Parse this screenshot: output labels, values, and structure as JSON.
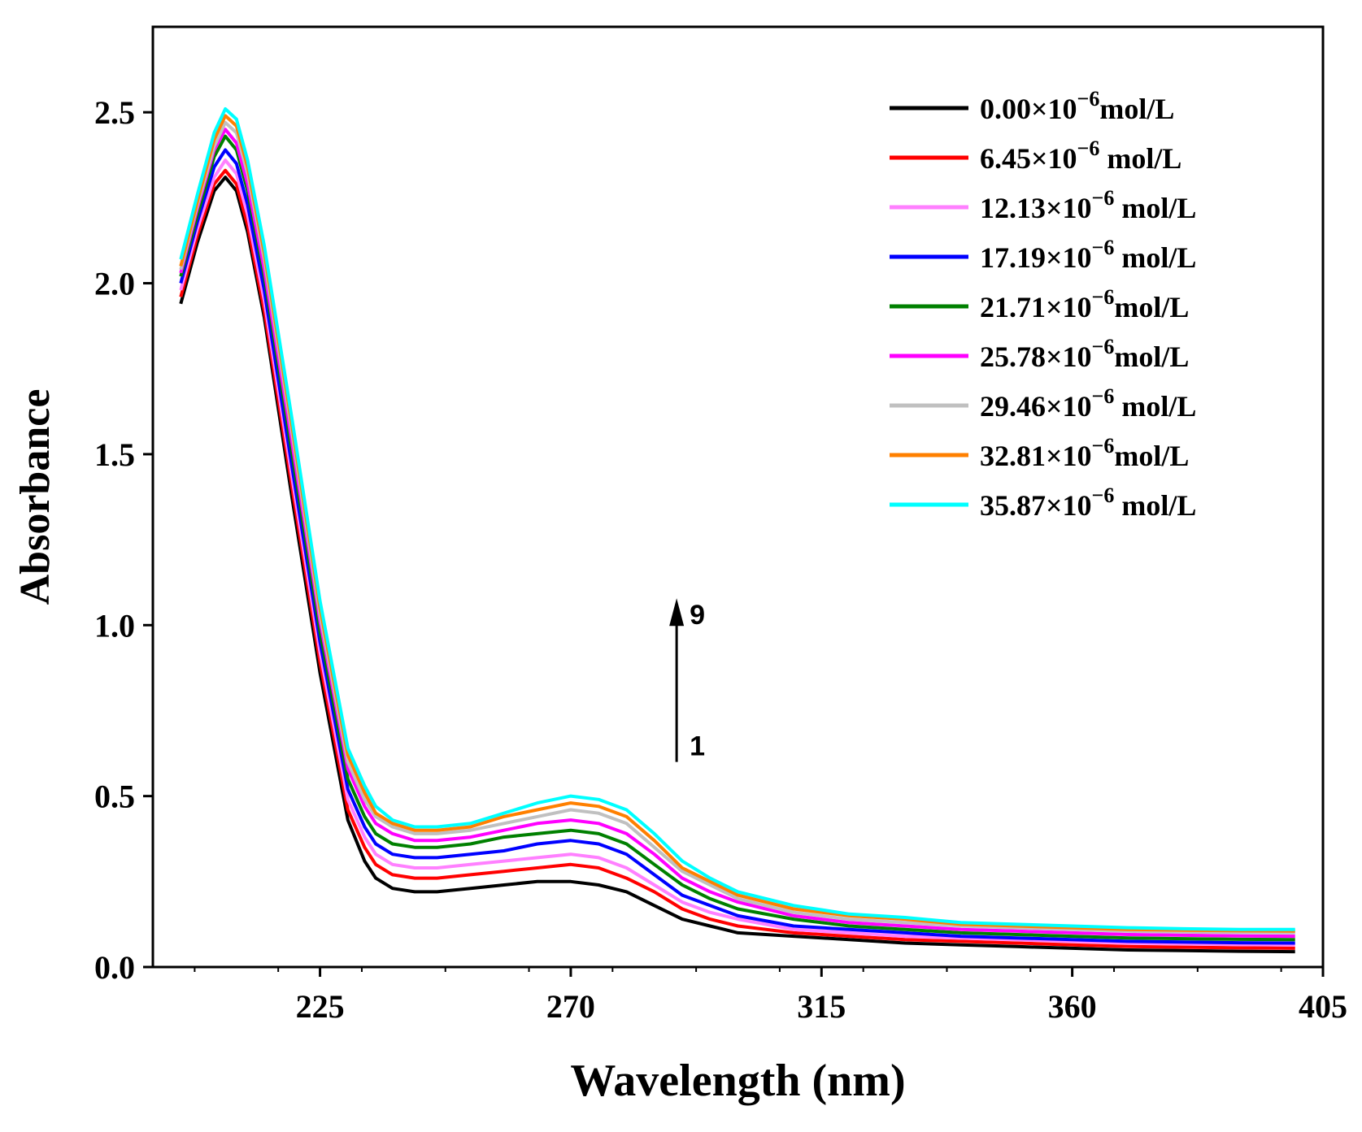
{
  "chart_data": {
    "type": "line",
    "title": "",
    "xlabel": "Wavelength (nm)",
    "ylabel": "Absorbance",
    "xlim": [
      195,
      405
    ],
    "ylim": [
      0.0,
      2.75
    ],
    "xticks": [
      225,
      270,
      315,
      360,
      405
    ],
    "yticks": [
      0.0,
      0.5,
      1.0,
      1.5,
      2.0,
      2.5
    ],
    "xtick_labels": [
      "225",
      "270",
      "315",
      "360",
      "405"
    ],
    "ytick_labels": [
      "0.0",
      "0.5",
      "1.0",
      "1.5",
      "2.0",
      "2.5"
    ],
    "grid": false,
    "legend_position": "top-right",
    "x": [
      200,
      203,
      206,
      208,
      210,
      212,
      215,
      220,
      225,
      230,
      233,
      235,
      238,
      242,
      246,
      252,
      258,
      264,
      270,
      275,
      280,
      285,
      290,
      295,
      300,
      310,
      320,
      330,
      340,
      350,
      360,
      370,
      380,
      390,
      400
    ],
    "series": [
      {
        "name": "0.00×10⁻⁶mol/L",
        "legend_base": "0.00×10",
        "legend_sup": "−6",
        "legend_unit": "mol/L",
        "color": "#000000",
        "values": [
          1.94,
          2.12,
          2.27,
          2.31,
          2.27,
          2.15,
          1.9,
          1.37,
          0.86,
          0.43,
          0.31,
          0.26,
          0.23,
          0.22,
          0.22,
          0.23,
          0.24,
          0.25,
          0.25,
          0.24,
          0.22,
          0.18,
          0.14,
          0.12,
          0.1,
          0.09,
          0.08,
          0.07,
          0.065,
          0.06,
          0.055,
          0.05,
          0.048,
          0.046,
          0.045
        ]
      },
      {
        "name": "6.45×10⁻⁶ mol/L",
        "legend_base": "6.45×10",
        "legend_sup": "−6",
        "legend_unit": " mol/L",
        "color": "#ff0000",
        "values": [
          1.96,
          2.14,
          2.29,
          2.33,
          2.29,
          2.17,
          1.92,
          1.4,
          0.89,
          0.46,
          0.35,
          0.3,
          0.27,
          0.26,
          0.26,
          0.27,
          0.28,
          0.29,
          0.3,
          0.29,
          0.26,
          0.22,
          0.17,
          0.14,
          0.12,
          0.1,
          0.09,
          0.08,
          0.075,
          0.07,
          0.065,
          0.06,
          0.058,
          0.056,
          0.055
        ]
      },
      {
        "name": "12.13×10⁻⁶ mol/L",
        "legend_base": "12.13×10",
        "legend_sup": "−6",
        "legend_unit": " mol/L",
        "color": "#ff80ff",
        "values": [
          1.98,
          2.16,
          2.31,
          2.36,
          2.32,
          2.2,
          1.95,
          1.43,
          0.92,
          0.49,
          0.38,
          0.33,
          0.3,
          0.29,
          0.29,
          0.3,
          0.31,
          0.32,
          0.33,
          0.32,
          0.29,
          0.24,
          0.19,
          0.16,
          0.14,
          0.11,
          0.1,
          0.09,
          0.085,
          0.08,
          0.075,
          0.07,
          0.068,
          0.066,
          0.065
        ]
      },
      {
        "name": "17.19×10⁻⁶ mol/L",
        "legend_base": "17.19×10",
        "legend_sup": "−6",
        "legend_unit": " mol/L",
        "color": "#0000ff",
        "values": [
          2.0,
          2.18,
          2.34,
          2.39,
          2.35,
          2.23,
          1.98,
          1.46,
          0.95,
          0.52,
          0.41,
          0.36,
          0.33,
          0.32,
          0.32,
          0.33,
          0.34,
          0.36,
          0.37,
          0.36,
          0.33,
          0.27,
          0.21,
          0.18,
          0.15,
          0.12,
          0.11,
          0.1,
          0.09,
          0.085,
          0.08,
          0.075,
          0.073,
          0.071,
          0.07
        ]
      },
      {
        "name": "21.71×10⁻⁶mol/L",
        "legend_base": "21.71×10",
        "legend_sup": "−6",
        "legend_unit": "mol/L",
        "color": "#008000",
        "values": [
          2.02,
          2.2,
          2.37,
          2.43,
          2.39,
          2.27,
          2.02,
          1.5,
          0.98,
          0.55,
          0.44,
          0.39,
          0.36,
          0.35,
          0.35,
          0.36,
          0.38,
          0.39,
          0.4,
          0.39,
          0.36,
          0.3,
          0.24,
          0.2,
          0.17,
          0.14,
          0.12,
          0.11,
          0.1,
          0.095,
          0.09,
          0.085,
          0.083,
          0.081,
          0.08
        ]
      },
      {
        "name": "25.78×10⁻⁶mol/L",
        "legend_base": "25.78×10",
        "legend_sup": "−6",
        "legend_unit": "mol/L",
        "color": "#ff00ff",
        "values": [
          2.03,
          2.22,
          2.39,
          2.45,
          2.41,
          2.29,
          2.04,
          1.53,
          1.01,
          0.58,
          0.47,
          0.42,
          0.39,
          0.37,
          0.37,
          0.38,
          0.4,
          0.42,
          0.43,
          0.42,
          0.39,
          0.33,
          0.26,
          0.22,
          0.19,
          0.15,
          0.13,
          0.12,
          0.11,
          0.105,
          0.1,
          0.095,
          0.093,
          0.091,
          0.09
        ]
      },
      {
        "name": "29.46×10⁻⁶ mol/L",
        "legend_base": "29.46×10",
        "legend_sup": "−6",
        "legend_unit": " mol/L",
        "color": "#c0c0c0",
        "values": [
          2.04,
          2.23,
          2.4,
          2.47,
          2.44,
          2.32,
          2.07,
          1.56,
          1.03,
          0.6,
          0.49,
          0.44,
          0.41,
          0.39,
          0.39,
          0.4,
          0.42,
          0.44,
          0.46,
          0.45,
          0.42,
          0.35,
          0.28,
          0.24,
          0.2,
          0.16,
          0.14,
          0.13,
          0.12,
          0.115,
          0.11,
          0.105,
          0.103,
          0.101,
          0.1
        ]
      },
      {
        "name": "32.81×10⁻⁶mol/L",
        "legend_base": "32.81×10",
        "legend_sup": "−6",
        "legend_unit": "mol/L",
        "color": "#ff8000",
        "values": [
          2.05,
          2.24,
          2.42,
          2.49,
          2.46,
          2.34,
          2.09,
          1.58,
          1.05,
          0.62,
          0.51,
          0.45,
          0.42,
          0.4,
          0.4,
          0.41,
          0.44,
          0.46,
          0.48,
          0.47,
          0.44,
          0.37,
          0.29,
          0.25,
          0.21,
          0.17,
          0.15,
          0.14,
          0.125,
          0.12,
          0.115,
          0.11,
          0.108,
          0.106,
          0.105
        ]
      },
      {
        "name": "35.87×10⁻⁶ mol/L",
        "legend_base": "35.87×10",
        "legend_sup": "−6",
        "legend_unit": " mol/L",
        "color": "#00ffff",
        "values": [
          2.07,
          2.26,
          2.44,
          2.51,
          2.48,
          2.36,
          2.11,
          1.6,
          1.07,
          0.64,
          0.53,
          0.47,
          0.43,
          0.41,
          0.41,
          0.42,
          0.45,
          0.48,
          0.5,
          0.49,
          0.46,
          0.39,
          0.31,
          0.26,
          0.22,
          0.18,
          0.155,
          0.145,
          0.13,
          0.125,
          0.12,
          0.115,
          0.112,
          0.11,
          0.11
        ]
      }
    ],
    "annotation": {
      "start_label": "1",
      "end_label": "9",
      "x": 289,
      "y_from": 0.6,
      "y_to": 1.05
    }
  }
}
